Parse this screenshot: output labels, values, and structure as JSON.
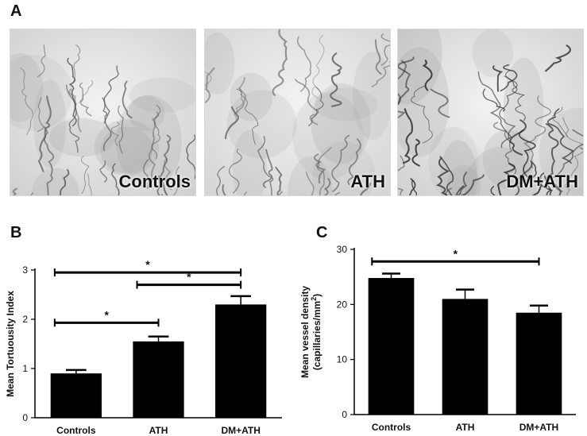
{
  "panels": {
    "a": {
      "letter": "A"
    },
    "b": {
      "letter": "B"
    },
    "c": {
      "letter": "C"
    }
  },
  "micrographs": [
    {
      "label": "Controls",
      "tint": "#cfcfcf",
      "vessel_color": "#5a5a5a"
    },
    {
      "label": "ATH",
      "tint": "#d4d4d4",
      "vessel_color": "#666666"
    },
    {
      "label": "DM+ATH",
      "tint": "#d0d0d0",
      "vessel_color": "#2e2e2e"
    }
  ],
  "chart_data": [
    {
      "type": "bar",
      "categories": [
        "Controls",
        "ATH",
        "DM+ATH"
      ],
      "values": [
        0.9,
        1.55,
        2.3
      ],
      "errors": [
        0.07,
        0.1,
        0.17
      ],
      "ylabel": "Mean Tortuousity Index",
      "ylim": [
        0,
        3
      ],
      "yticks": [
        "0",
        "1",
        "2",
        "3"
      ],
      "bar_color": "#000000",
      "significance": [
        {
          "from": 0,
          "to": 1,
          "y": 1.93,
          "label": "*"
        },
        {
          "from": 1,
          "to": 2,
          "y": 2.7,
          "label": "*"
        },
        {
          "from": 0,
          "to": 2,
          "y": 2.95,
          "label": "*"
        }
      ]
    },
    {
      "type": "bar",
      "categories": [
        "Controls",
        "ATH",
        "DM+ATH"
      ],
      "values": [
        24.8,
        21.0,
        18.5
      ],
      "errors": [
        0.8,
        1.7,
        1.3
      ],
      "ylabel_line1": "Mean vessel density",
      "ylabel_line2": "(capillaries/mm",
      "ylabel_sup": "2",
      "ylabel_close": ")",
      "ylim": [
        0,
        30
      ],
      "yticks": [
        "0",
        "10",
        "20",
        "30"
      ],
      "bar_color": "#000000",
      "significance": [
        {
          "from": 0,
          "to": 2,
          "y": 27.8,
          "label": "*"
        }
      ]
    }
  ]
}
